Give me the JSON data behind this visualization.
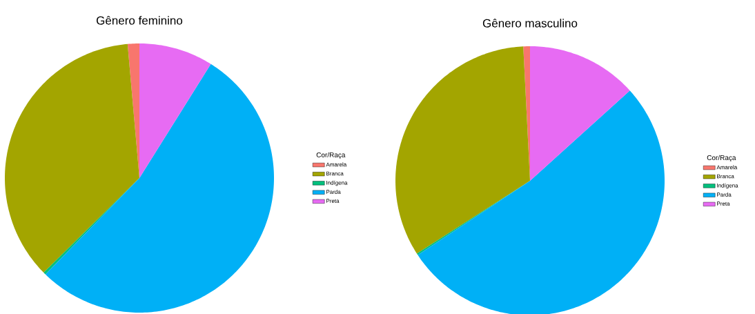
{
  "chart_data": [
    {
      "type": "pie",
      "title": "Gênero feminino",
      "legend_title": "Cor/Raça",
      "legend": "right",
      "categories": [
        "Amarela",
        "Branca",
        "Indígena",
        "Parda",
        "Preta"
      ],
      "values": [
        1.4,
        36,
        0.3,
        53.4,
        8.9
      ],
      "colors": [
        "#f8766d",
        "#a3a500",
        "#00bf7d",
        "#00b0f6",
        "#e76bf3"
      ]
    },
    {
      "type": "pie",
      "title": "Gênero masculino",
      "legend_title": "Cor/Raça",
      "legend": "right",
      "categories": [
        "Amarela",
        "Branca",
        "Indígena",
        "Parda",
        "Preta"
      ],
      "values": [
        0.8,
        33.3,
        0.2,
        52.4,
        13.3
      ],
      "colors": [
        "#f8766d",
        "#a3a500",
        "#00bf7d",
        "#00b0f6",
        "#e76bf3"
      ]
    }
  ]
}
